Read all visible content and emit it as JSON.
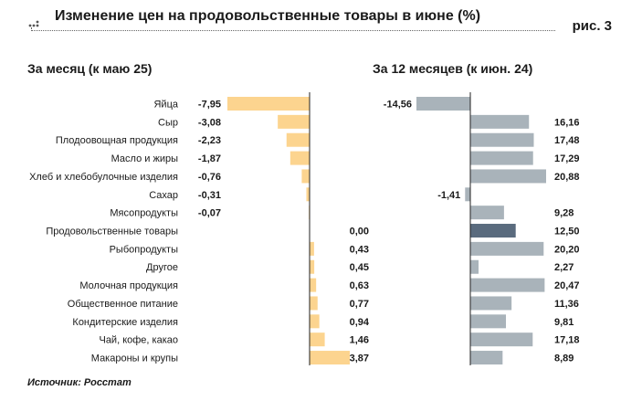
{
  "header": {
    "title": "Изменение цен на продовольственные товары в июне (%)",
    "figure_label": "рис. 3"
  },
  "source": "Источник: Росстат",
  "colors": {
    "left_bar": "#fcd48f",
    "right_bar": "#a9b3ba",
    "right_highlight": "#5a6b7e"
  },
  "chart_data": [
    {
      "type": "bar",
      "orientation": "horizontal",
      "title": "За месяц (к маю 25)",
      "categories": [
        "Яйца",
        "Сыр",
        "Плодоовощная продукция",
        "Масло и жиры",
        "Хлеб и хлебобулочные изделия",
        "Сахар",
        "Мясопродукты",
        "Продовольственные товары",
        "Рыбопродукты",
        "Другое",
        "Молочная продукция",
        "Общественное питание",
        "Кондитерские изделия",
        "Чай, кофе, какао",
        "Макароны и крупы"
      ],
      "values": [
        -7.95,
        -3.08,
        -2.23,
        -1.87,
        -0.76,
        -0.31,
        -0.07,
        0.0,
        0.43,
        0.45,
        0.63,
        0.77,
        0.94,
        1.46,
        3.87
      ],
      "labels": [
        "-7,95",
        "-3,08",
        "-2,23",
        "-1,87",
        "-0,76",
        "-0,31",
        "-0,07",
        "0,00",
        "0,43",
        "0,45",
        "0,63",
        "0,77",
        "0,94",
        "1,46",
        "3,87"
      ],
      "xlim": [
        -7.95,
        3.87
      ]
    },
    {
      "type": "bar",
      "orientation": "horizontal",
      "title": "За 12 месяцев (к июн. 24)",
      "categories": [
        "Яйца",
        "Сыр",
        "Плодоовощная продукция",
        "Масло и жиры",
        "Хлеб и хлебобулочные изделия",
        "Сахар",
        "Мясопродукты",
        "Продовольственные товары",
        "Рыбопродукты",
        "Другое",
        "Молочная продукция",
        "Общественное питание",
        "Кондитерские изделия",
        "Чай, кофе, какао",
        "Макароны и крупы"
      ],
      "values": [
        -14.56,
        16.16,
        17.48,
        17.29,
        20.88,
        -1.41,
        9.28,
        12.5,
        20.2,
        2.27,
        20.47,
        11.36,
        9.81,
        17.18,
        8.89
      ],
      "labels": [
        "-14,56",
        "16,16",
        "17,48",
        "17,29",
        "20,88",
        "-1,41",
        "9,28",
        "12,50",
        "20,20",
        "2,27",
        "20,47",
        "11,36",
        "9,81",
        "17,18",
        "8,89"
      ],
      "highlight": "Продовольственные товары",
      "xlim": [
        -14.56,
        20.88
      ]
    }
  ]
}
